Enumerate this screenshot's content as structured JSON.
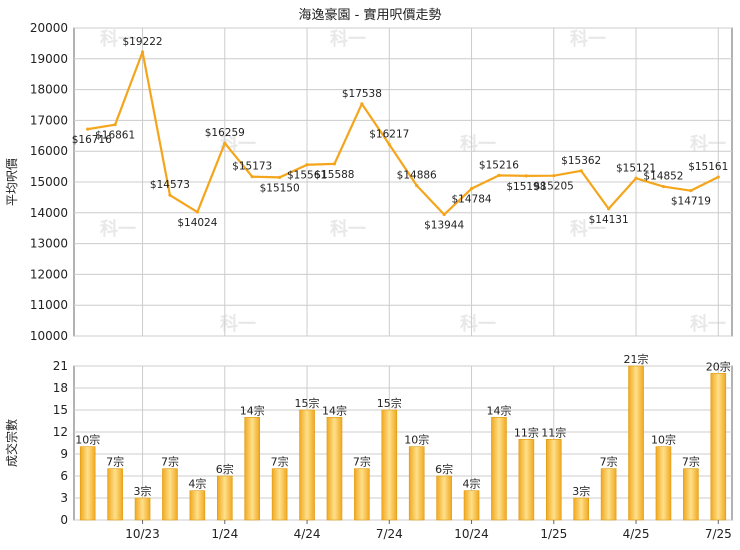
{
  "title": "海逸豪園 - 實用呎價走勢",
  "colors": {
    "line": "#f5a51b",
    "bar": "#f0a820",
    "bar_light": "#ffe08a",
    "grid": "#cccccc",
    "axis": "#666666",
    "label": "#222222",
    "watermark": "#e8e8e8"
  },
  "watermark": "科一",
  "chart_data": [
    {
      "type": "line",
      "ylabel": "平均呎價",
      "ylim": [
        10000,
        20000
      ],
      "yticks": [
        "20000",
        "19000",
        "18000",
        "17000",
        "16000",
        "15000",
        "14000",
        "13000",
        "12000",
        "11000",
        "10000"
      ],
      "grid": true,
      "x": [
        "2023-08",
        "2023-09",
        "2023-10",
        "2023-11",
        "2023-12",
        "2024-01",
        "2024-02",
        "2024-03",
        "2024-04",
        "2024-05",
        "2024-06",
        "2024-07",
        "2024-08",
        "2024-09",
        "2024-10",
        "2024-11",
        "2024-12",
        "2025-01",
        "2025-02",
        "2025-03",
        "2025-04",
        "2025-05",
        "2025-06",
        "2025-07"
      ],
      "values": [
        16716,
        16861,
        19222,
        14573,
        14024,
        16259,
        15173,
        15150,
        15561,
        15588,
        17538,
        16217,
        14886,
        13944,
        14784,
        15216,
        15198,
        15205,
        15362,
        14131,
        15121,
        14852,
        14719,
        15161
      ],
      "labels": [
        "$16716",
        "$16861",
        "$19222",
        "$14573",
        "$14024",
        "$16259",
        "$15173",
        "$15150",
        "$15561",
        "$15588",
        "$17538",
        "$16217",
        "$14886",
        "$13944",
        "$14784",
        "$15216",
        "$15198",
        "$15205",
        "$15362",
        "$14131",
        "$15121",
        "$14852",
        "$14719",
        "$15161"
      ]
    },
    {
      "type": "bar",
      "ylabel": "成交宗數",
      "ylim": [
        0,
        21
      ],
      "yticks": [
        "21",
        "18",
        "15",
        "12",
        "9",
        "6",
        "3",
        "0"
      ],
      "grid": true,
      "categories": [
        "2023-08",
        "2023-09",
        "2023-10",
        "2023-11",
        "2023-12",
        "2024-01",
        "2024-02",
        "2024-03",
        "2024-04",
        "2024-05",
        "2024-06",
        "2024-07",
        "2024-08",
        "2024-09",
        "2024-10",
        "2024-11",
        "2024-12",
        "2025-01",
        "2025-02",
        "2025-03",
        "2025-04",
        "2025-05",
        "2025-06",
        "2025-07"
      ],
      "values": [
        10,
        7,
        3,
        7,
        4,
        6,
        14,
        7,
        15,
        14,
        7,
        15,
        10,
        6,
        4,
        14,
        11,
        11,
        3,
        7,
        21,
        10,
        7,
        20
      ],
      "labels": [
        "10宗",
        "7宗",
        "3宗",
        "7宗",
        "4宗",
        "6宗",
        "14宗",
        "7宗",
        "15宗",
        "14宗",
        "7宗",
        "15宗",
        "10宗",
        "6宗",
        "4宗",
        "14宗",
        "11宗",
        "11宗",
        "3宗",
        "7宗",
        "21宗",
        "10宗",
        "7宗",
        "20宗"
      ],
      "xticks": [
        "10/23",
        "1/24",
        "4/24",
        "7/24",
        "10/24",
        "1/25",
        "4/25",
        "7/25"
      ]
    }
  ]
}
